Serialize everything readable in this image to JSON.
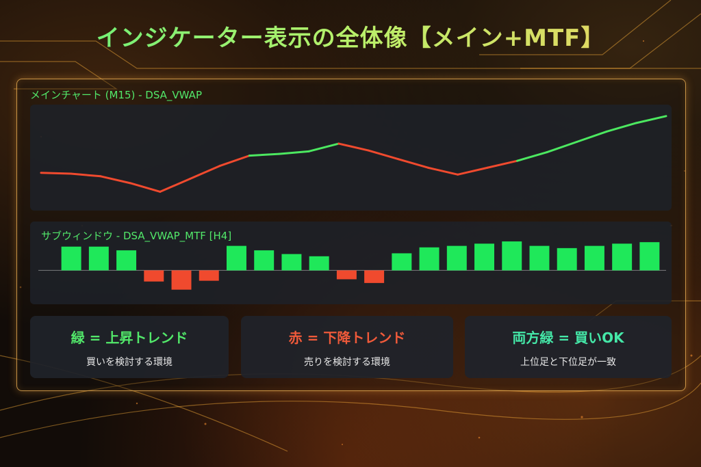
{
  "title": "インジケーター表示の全体像【メイン+MTF】",
  "main_chart": {
    "label": "メインチャート (M15) - DSA_VWAP",
    "chart_data": {
      "type": "line",
      "points": [
        {
          "x": 0,
          "y": 52,
          "trend": "down"
        },
        {
          "x": 1,
          "y": 51,
          "trend": "down"
        },
        {
          "x": 2,
          "y": 48,
          "trend": "down"
        },
        {
          "x": 3,
          "y": 40,
          "trend": "down"
        },
        {
          "x": 4,
          "y": 30,
          "trend": "down"
        },
        {
          "x": 5,
          "y": 45,
          "trend": "down"
        },
        {
          "x": 6,
          "y": 60,
          "trend": "down"
        },
        {
          "x": 7,
          "y": 72,
          "trend": "up"
        },
        {
          "x": 8,
          "y": 74,
          "trend": "up"
        },
        {
          "x": 9,
          "y": 77,
          "trend": "up"
        },
        {
          "x": 10,
          "y": 86,
          "trend": "down"
        },
        {
          "x": 11,
          "y": 78,
          "trend": "down"
        },
        {
          "x": 12,
          "y": 68,
          "trend": "down"
        },
        {
          "x": 13,
          "y": 58,
          "trend": "down"
        },
        {
          "x": 14,
          "y": 50,
          "trend": "down"
        },
        {
          "x": 15,
          "y": 58,
          "trend": "down"
        },
        {
          "x": 16,
          "y": 66,
          "trend": "up"
        },
        {
          "x": 17,
          "y": 76,
          "trend": "up"
        },
        {
          "x": 18,
          "y": 88,
          "trend": "up"
        },
        {
          "x": 19,
          "y": 100,
          "trend": "up"
        },
        {
          "x": 20,
          "y": 110,
          "trend": "up"
        },
        {
          "x": 21,
          "y": 118,
          "trend": "up"
        }
      ],
      "colors": {
        "up": "#4ce860",
        "down": "#f04a2e"
      }
    }
  },
  "sub_window": {
    "label": "サブウィンドウ - DSA_VWAP_MTF [H4]",
    "chart_data": {
      "type": "bar",
      "values": [
        32,
        32,
        27,
        -15,
        -26,
        -14,
        33,
        27,
        22,
        19,
        -12,
        -17,
        23,
        31,
        33,
        36,
        39,
        33,
        30,
        33,
        36,
        38
      ],
      "ylim": [
        -30,
        40
      ],
      "colors": {
        "positive": "#1fe85a",
        "negative": "#f04a2e"
      }
    }
  },
  "cards": [
    {
      "title": "緑 = 上昇トレンド",
      "subtitle": "買いを検討する環境",
      "color": "#52e86a"
    },
    {
      "title": "赤 = 下降トレンド",
      "subtitle": "売りを検討する環境",
      "color": "#f05a3a"
    },
    {
      "title": "両方緑 = 買いOK",
      "subtitle": "上位足と下位足が一致",
      "color": "#45e8a8"
    }
  ]
}
